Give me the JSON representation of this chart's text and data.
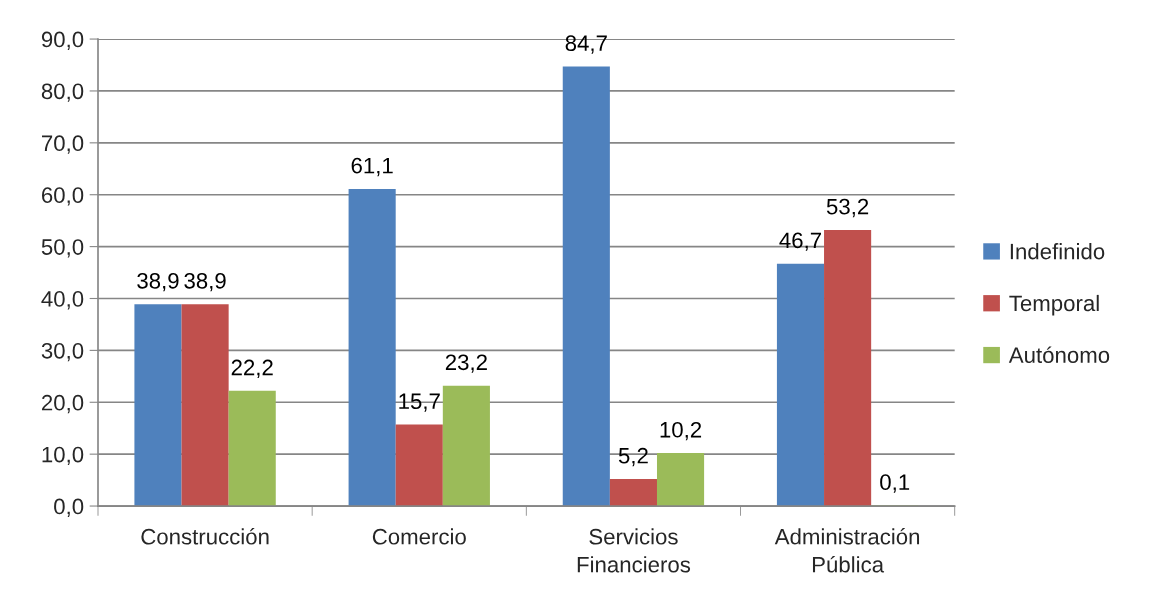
{
  "chart_data": {
    "type": "bar",
    "categories": [
      "Construcción",
      "Comercio",
      "Servicios\nFinancieros",
      "Administración\nPública"
    ],
    "series": [
      {
        "name": "Indefinido",
        "color": "#4f81bd",
        "values": [
          38.9,
          61.1,
          84.7,
          46.7
        ],
        "value_labels": [
          "38,9",
          "61,1",
          "84,7",
          "46,7"
        ]
      },
      {
        "name": "Temporal",
        "color": "#c0504d",
        "values": [
          38.9,
          15.7,
          5.2,
          53.2
        ],
        "value_labels": [
          "38,9",
          "15,7",
          "5,2",
          "53,2"
        ]
      },
      {
        "name": "Autónomo",
        "color": "#9bbb59",
        "values": [
          22.2,
          23.2,
          10.2,
          0.1
        ],
        "value_labels": [
          "22,2",
          "23,2",
          "10,2",
          "0,1"
        ]
      }
    ],
    "ylim": [
      0,
      90
    ],
    "yticks": [
      {
        "value": 0,
        "label": "0,0"
      },
      {
        "value": 10,
        "label": "10,0"
      },
      {
        "value": 20,
        "label": "20,0"
      },
      {
        "value": 30,
        "label": "30,0"
      },
      {
        "value": 40,
        "label": "40,0"
      },
      {
        "value": 50,
        "label": "50,0"
      },
      {
        "value": 60,
        "label": "60,0"
      },
      {
        "value": 70,
        "label": "70,0"
      },
      {
        "value": 80,
        "label": "80,0"
      },
      {
        "value": 90,
        "label": "90,0"
      }
    ],
    "grid": "y",
    "legend": "right"
  }
}
